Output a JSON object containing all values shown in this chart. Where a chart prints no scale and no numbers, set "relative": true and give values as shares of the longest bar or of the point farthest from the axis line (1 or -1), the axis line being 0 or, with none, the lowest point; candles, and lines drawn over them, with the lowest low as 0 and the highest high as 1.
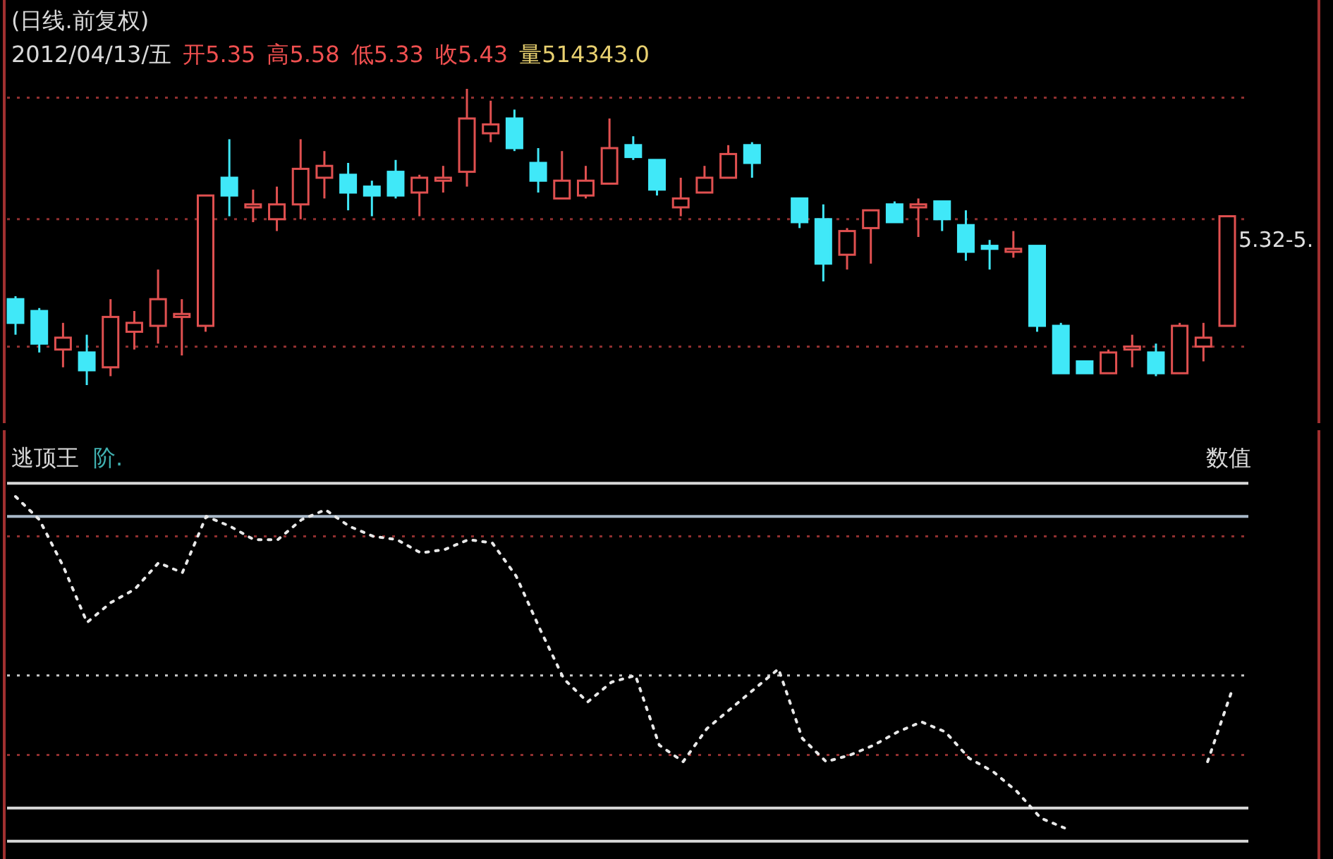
{
  "chart_data": [
    {
      "type": "candlestick",
      "title": "(日线.前复权)",
      "relative": true,
      "annotations": [
        "2012/04/13/五",
        "开5.35",
        "高5.58",
        "低5.33",
        "收5.43",
        "量514343.0",
        "5.32-5."
      ],
      "colors": [
        "#40e8f8",
        "#40e8f8",
        "#e05050",
        "#40e8f8",
        "#e05050",
        "#e05050",
        "#e05050",
        "#e05050",
        "#e05050",
        "#40e8f8",
        "#e05050",
        "#e05050",
        "#e05050",
        "#e05050",
        "#40e8f8",
        "#40e8f8",
        "#40e8f8",
        "#e05050",
        "#e05050",
        "#e05050",
        "#e05050",
        "#40e8f8",
        "#40e8f8",
        "#e05050",
        "#e05050",
        "#e05050",
        "#40e8f8",
        "#40e8f8",
        "#e05050",
        "#e05050",
        "#e05050",
        "#40e8f8",
        null,
        "#40e8f8",
        "#40e8f8",
        "#e05050",
        "#e05050",
        "#40e8f8",
        "#e05050",
        "#40e8f8",
        "#40e8f8",
        "#40e8f8",
        "#e05050",
        "#40e8f8",
        "#40e8f8",
        "#40e8f8",
        "#e05050",
        "#e05050",
        "#40e8f8",
        "#e05050",
        "#e05050",
        "#e05050"
      ],
      "categories": [
        null,
        null,
        null,
        null,
        null,
        null,
        null,
        null,
        null,
        null,
        null,
        null,
        null,
        null,
        null,
        null,
        null,
        null,
        null,
        null,
        null,
        null,
        null,
        null,
        null,
        null,
        null,
        null,
        null,
        null,
        null,
        null,
        null,
        null,
        null,
        null,
        null,
        null,
        null,
        null,
        null,
        null,
        null,
        null,
        null,
        null,
        null,
        null,
        null,
        null,
        null,
        null
      ],
      "ohlc": [
        [
          0.29,
          0.3,
          0.17,
          0.21
        ],
        [
          0.25,
          0.26,
          0.11,
          0.14
        ],
        [
          0.12,
          0.21,
          0.06,
          0.16
        ],
        [
          0.11,
          0.17,
          0,
          0.05
        ],
        [
          0.06,
          0.29,
          0.03,
          0.23
        ],
        [
          0.18,
          0.25,
          0.12,
          0.21
        ],
        [
          0.2,
          0.39,
          0.14,
          0.29
        ],
        [
          0.23,
          0.29,
          0.1,
          0.24
        ],
        [
          0.2,
          0.64,
          0.18,
          0.64
        ],
        [
          0.7,
          0.83,
          0.57,
          0.64
        ],
        [
          0.6,
          0.66,
          0.55,
          0.61
        ],
        [
          0.56,
          0.67,
          0.52,
          0.61
        ],
        [
          0.61,
          0.83,
          0.56,
          0.73
        ],
        [
          0.7,
          0.79,
          0.63,
          0.74
        ],
        [
          0.71,
          0.75,
          0.59,
          0.65
        ],
        [
          0.67,
          0.69,
          0.57,
          0.64
        ],
        [
          0.72,
          0.76,
          0.63,
          0.64
        ],
        [
          0.65,
          0.71,
          0.57,
          0.7
        ],
        [
          0.69,
          0.74,
          0.65,
          0.7
        ],
        [
          0.72,
          1,
          0.67,
          0.9
        ],
        [
          0.85,
          0.96,
          0.82,
          0.88
        ],
        [
          0.9,
          0.93,
          0.79,
          0.8
        ],
        [
          0.75,
          0.8,
          0.65,
          0.69
        ],
        [
          0.63,
          0.79,
          0.63,
          0.69
        ],
        [
          0.64,
          0.74,
          0.63,
          0.69
        ],
        [
          0.68,
          0.9,
          0.68,
          0.8
        ],
        [
          0.81,
          0.84,
          0.76,
          0.77
        ],
        [
          0.76,
          0.76,
          0.64,
          0.66
        ],
        [
          0.6,
          0.7,
          0.57,
          0.63
        ],
        [
          0.65,
          0.74,
          0.65,
          0.7
        ],
        [
          0.7,
          0.81,
          0.7,
          0.78
        ],
        [
          0.81,
          0.82,
          0.7,
          0.75
        ],
        null,
        [
          0.63,
          0.63,
          0.53,
          0.55
        ],
        [
          0.56,
          0.61,
          0.35,
          0.41
        ],
        [
          0.44,
          0.53,
          0.39,
          0.52
        ],
        [
          0.53,
          0.59,
          0.41,
          0.59
        ],
        [
          0.61,
          0.62,
          0.55,
          0.55
        ],
        [
          0.6,
          0.63,
          0.5,
          0.61
        ],
        [
          0.62,
          0.62,
          0.52,
          0.56
        ],
        [
          0.54,
          0.59,
          0.42,
          0.45
        ],
        [
          0.47,
          0.49,
          0.39,
          0.46
        ],
        [
          0.45,
          0.52,
          0.43,
          0.46
        ],
        [
          0.47,
          0.47,
          0.18,
          0.2
        ],
        [
          0.2,
          0.21,
          0.04,
          0.04
        ],
        [
          0.08,
          0.08,
          0.04,
          0.04
        ],
        [
          0.04,
          0.12,
          0.04,
          0.11
        ],
        [
          0.12,
          0.17,
          0.06,
          0.13
        ],
        [
          0.11,
          0.14,
          0.03,
          0.04
        ],
        [
          0.04,
          0.21,
          0.04,
          0.2
        ],
        [
          0.13,
          0.21,
          0.08,
          0.16
        ],
        [
          0.2,
          0.57,
          0.2,
          0.57
        ]
      ],
      "ref_lines": [
        {
          "axis": "y",
          "value": 0.97,
          "color": "#903030",
          "line_style": "dotted"
        },
        {
          "axis": "y",
          "value": 0.56,
          "color": "#903030",
          "line_style": "dotted"
        },
        {
          "axis": "y",
          "value": 0.13,
          "color": "#903030",
          "line_style": "dotted"
        }
      ]
    },
    {
      "type": "line",
      "title": "逃顶王",
      "relative": true,
      "categories": [
        null,
        null,
        null,
        null,
        null,
        null,
        null,
        null,
        null,
        null,
        null,
        null,
        null,
        null,
        null,
        null,
        null,
        null,
        null,
        null,
        null,
        null,
        null,
        null,
        null,
        null,
        null,
        null,
        null,
        null,
        null,
        null,
        null,
        null,
        null,
        null,
        null,
        null,
        null,
        null,
        null,
        null,
        null,
        null,
        null,
        null,
        null,
        null,
        null,
        null,
        null,
        null
      ],
      "annotations": [
        "阶.",
        "数值"
      ],
      "series": [
        {
          "color": "#e8e8e8",
          "line_style": "dotted",
          "values": [
            1.0,
            0.93,
            0.79,
            0.62,
            0.68,
            0.72,
            0.8,
            0.77,
            0.94,
            0.91,
            0.87,
            0.87,
            0.93,
            0.96,
            0.91,
            0.88,
            0.87,
            0.83,
            0.84,
            0.87,
            0.86,
            0.76,
            0.6,
            0.45,
            0.38,
            0.44,
            0.46,
            0.25,
            0.2,
            0.3,
            0.36,
            0.42,
            0.48,
            0.27,
            0.2,
            0.22,
            0.25,
            0.29,
            0.32,
            0.29,
            0.21,
            0.17,
            0.11,
            0.03,
            0,
            null,
            null,
            null,
            null,
            null,
            0.2,
            0.41
          ]
        }
      ],
      "ref_lines": [
        {
          "axis": "y",
          "value": 1.04,
          "color": "#d8d8d8",
          "line_style": "solid"
        },
        {
          "axis": "y",
          "value": 0.94,
          "color": "#a8b8c8",
          "line_style": "solid"
        },
        {
          "axis": "y",
          "value": 0.88,
          "color": "#903030",
          "line_style": "dotted"
        },
        {
          "axis": "y",
          "value": 0.46,
          "color": "#c8c8c8",
          "line_style": "dotted"
        },
        {
          "axis": "y",
          "value": 0.22,
          "color": "#903030",
          "line_style": "dotted"
        },
        {
          "axis": "y",
          "value": 0.06,
          "color": "#d8d8d8",
          "line_style": "solid"
        },
        {
          "axis": "y",
          "value": -0.04,
          "color": "#d8d8d8",
          "line_style": "solid"
        }
      ]
    }
  ]
}
